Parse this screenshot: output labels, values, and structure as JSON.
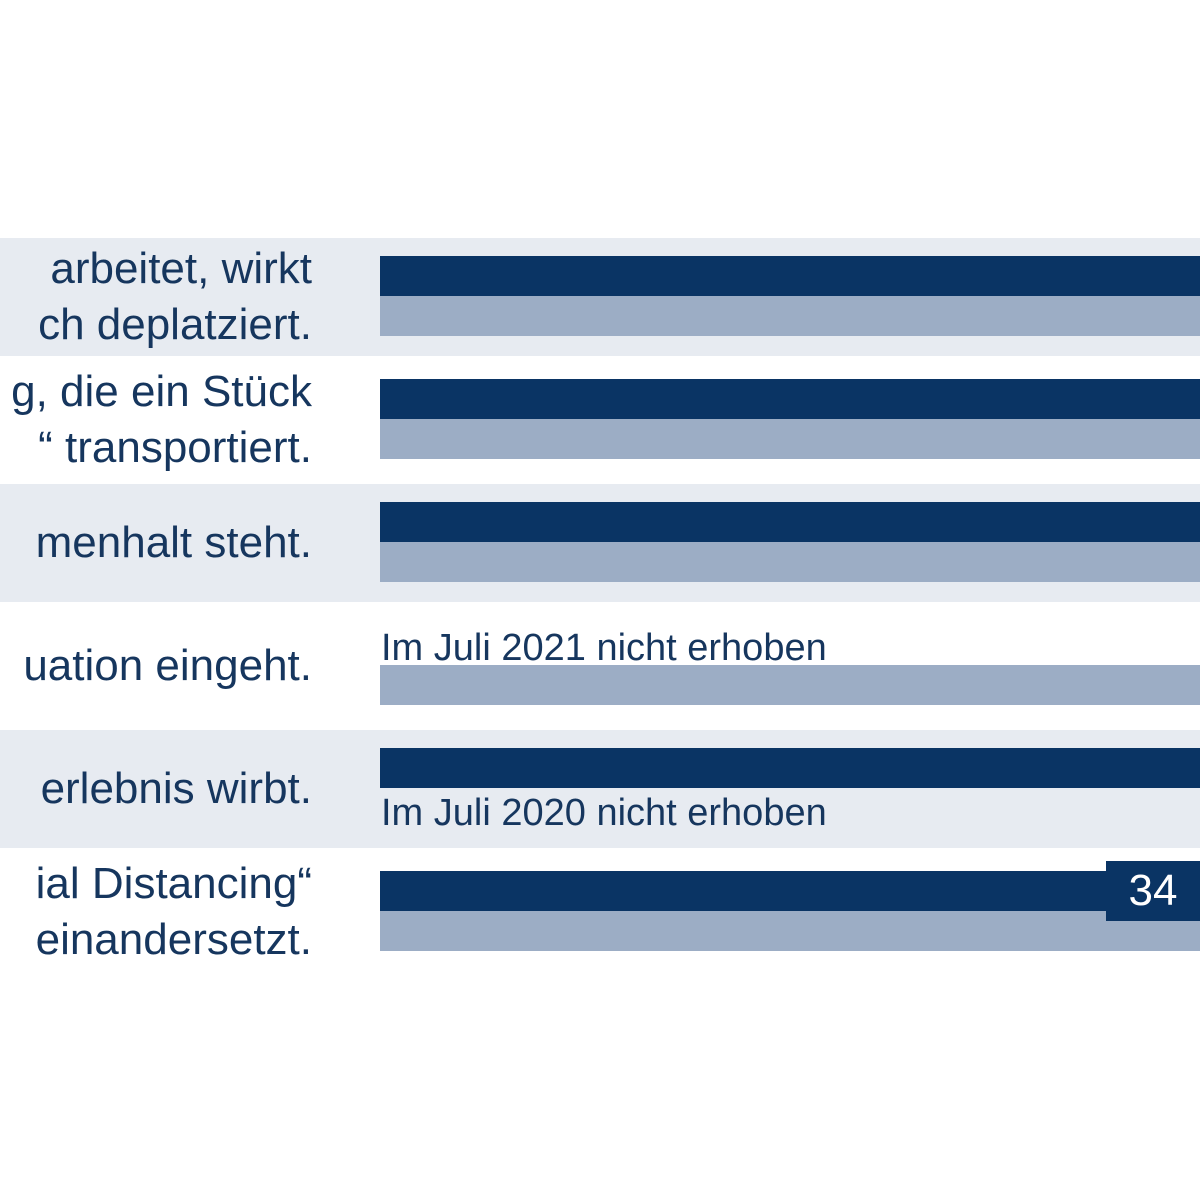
{
  "chart_data": {
    "type": "bar",
    "orientation": "horizontal",
    "legend": "",
    "categories": [
      "… arbeitet, wirkt … ch deplatziert.",
      "…g, die ein Stück …“ transportiert.",
      "…menhalt steht.",
      "…uation eingeht.",
      "…erlebnis wirbt.",
      "…ial Distancing“ …einandersetzt."
    ],
    "rows": [
      {
        "label_lines": [
          "arbeitet, wirkt",
          "ch deplatziert."
        ],
        "bar_2021": true,
        "bar_2020": true,
        "note": ""
      },
      {
        "label_lines": [
          "g, die ein Stück",
          "“ transportiert."
        ],
        "bar_2021": true,
        "bar_2020": true,
        "note": ""
      },
      {
        "label_lines": [
          "menhalt steht."
        ],
        "bar_2021": true,
        "bar_2020": true,
        "note": ""
      },
      {
        "label_lines": [
          "uation eingeht."
        ],
        "bar_2021": false,
        "bar_2020": true,
        "note": "Im Juli 2021 nicht erhoben"
      },
      {
        "label_lines": [
          "erlebnis wirbt."
        ],
        "bar_2021": true,
        "bar_2020": false,
        "note": "Im Juli 2020 nicht erhoben"
      },
      {
        "label_lines": [
          "ial Distancing“",
          "einandersetzt."
        ],
        "bar_2021": true,
        "bar_2020": true,
        "note": "",
        "value_label": "34"
      }
    ],
    "series": [
      {
        "values": [
          null,
          null,
          null,
          null,
          null,
          34
        ],
        "color": "#0a3464"
      },
      {
        "values": [
          null,
          null,
          null,
          null,
          null,
          null
        ],
        "color": "#9cadc5"
      }
    ],
    "colors": {
      "series_2021": "#0a3464",
      "series_2020": "#9cadc5",
      "row_band": "#e7ebf1",
      "text": "#16365e"
    },
    "grid": false
  }
}
